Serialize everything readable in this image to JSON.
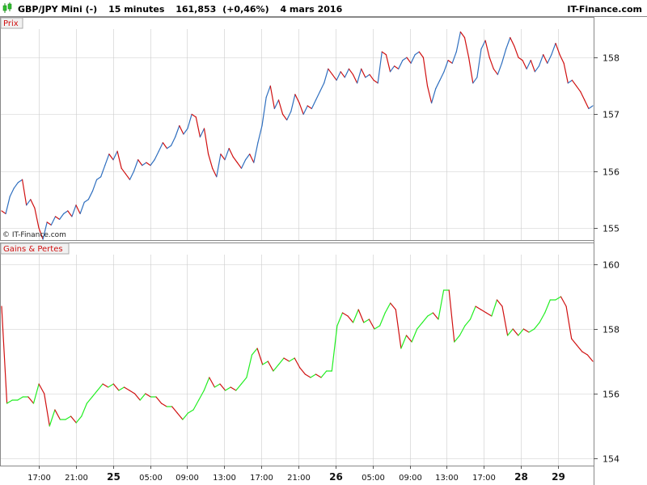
{
  "header": {
    "symbol": "GBP/JPY Mini (-)",
    "interval": "15 minutes",
    "price": "161,853",
    "change": "(+0,46%)",
    "date": "4 mars 2016",
    "brand": "IT-Finance.com"
  },
  "copyright": "© IT-Finance.com",
  "colors": {
    "up": "#2f6fbf",
    "down": "#d01010",
    "gain": "#22ee22",
    "loss": "#d01010",
    "grid": "#cccccc",
    "frame": "#888888"
  },
  "x_ticks": [
    "17:00",
    "21:00",
    "25",
    "05:00",
    "09:00",
    "13:00",
    "17:00",
    "21:00",
    "26",
    "05:00",
    "09:00",
    "13:00",
    "17:00",
    "28",
    "29"
  ],
  "x_ticks_bold": [
    "25",
    "26",
    "28",
    "29"
  ],
  "chart_data": [
    {
      "type": "line",
      "title": "Prix",
      "ylim": [
        154.8,
        158.5
      ],
      "yticks": [
        155,
        156,
        157,
        158
      ],
      "series": [
        {
          "values": [
            155.3,
            155.25,
            155.55,
            155.7,
            155.8,
            155.85,
            155.4,
            155.5,
            155.35,
            155.0,
            154.8,
            155.1,
            155.05,
            155.2,
            155.15,
            155.25,
            155.3,
            155.2,
            155.4,
            155.25,
            155.45,
            155.5,
            155.65,
            155.85,
            155.9,
            156.1,
            156.3,
            156.2,
            156.35,
            156.05,
            155.95,
            155.85,
            156.0,
            156.2,
            156.1,
            156.15,
            156.1,
            156.2,
            156.35,
            156.5,
            156.4,
            156.45,
            156.6,
            156.8,
            156.65,
            156.75,
            157.0,
            156.95,
            156.6,
            156.75,
            156.3,
            156.05,
            155.9,
            156.3,
            156.2,
            156.4,
            156.25,
            156.15,
            156.05,
            156.2,
            156.3,
            156.15,
            156.5,
            156.8,
            157.3,
            157.5,
            157.1,
            157.25,
            157.0,
            156.9,
            157.05,
            157.35,
            157.2,
            157.0,
            157.15,
            157.1,
            157.25,
            157.4,
            157.55,
            157.8,
            157.7,
            157.6,
            157.75,
            157.65,
            157.8,
            157.7,
            157.55,
            157.8,
            157.65,
            157.7,
            157.6,
            157.55,
            158.1,
            158.05,
            157.75,
            157.85,
            157.8,
            157.95,
            158.0,
            157.9,
            158.05,
            158.1,
            158.0,
            157.5,
            157.2,
            157.45,
            157.6,
            157.75,
            157.95,
            157.9,
            158.1,
            158.45,
            158.35,
            158.0,
            157.55,
            157.65,
            158.15,
            158.3,
            158.0,
            157.8,
            157.7,
            157.9,
            158.15,
            158.35,
            158.2,
            158.0,
            157.95,
            157.8,
            157.95,
            157.75,
            157.85,
            158.05,
            157.9,
            158.05,
            158.25,
            158.05,
            157.9,
            157.55,
            157.6,
            157.5,
            157.4,
            157.25,
            157.1,
            157.15
          ]
        }
      ]
    },
    {
      "type": "line",
      "title": "Gains & Pertes",
      "ylim": [
        153.8,
        160.3
      ],
      "yticks": [
        154,
        156,
        158,
        160
      ],
      "series": [
        {
          "values": [
            158.7,
            155.7,
            155.8,
            155.8,
            155.9,
            155.9,
            155.7,
            156.3,
            156.0,
            155.0,
            155.5,
            155.2,
            155.2,
            155.3,
            155.1,
            155.3,
            155.7,
            155.9,
            156.1,
            156.3,
            156.2,
            156.3,
            156.1,
            156.2,
            156.1,
            156.0,
            155.8,
            156.0,
            155.9,
            155.9,
            155.7,
            155.6,
            155.6,
            155.4,
            155.2,
            155.4,
            155.5,
            155.8,
            156.1,
            156.5,
            156.2,
            156.3,
            156.1,
            156.2,
            156.1,
            156.3,
            156.5,
            157.2,
            157.4,
            156.9,
            157.0,
            156.7,
            156.9,
            157.1,
            157.0,
            157.1,
            156.8,
            156.6,
            156.5,
            156.6,
            156.5,
            156.7,
            156.7,
            158.1,
            158.5,
            158.4,
            158.2,
            158.6,
            158.2,
            158.3,
            158.0,
            158.1,
            158.5,
            158.8,
            158.6,
            157.4,
            157.8,
            157.6,
            158.0,
            158.2,
            158.4,
            158.5,
            158.3,
            159.2,
            159.2,
            157.6,
            157.8,
            158.1,
            158.3,
            158.7,
            158.6,
            158.5,
            158.4,
            158.9,
            158.7,
            157.8,
            158.0,
            157.8,
            158.0,
            157.9,
            158.0,
            158.2,
            158.5,
            158.9,
            158.9,
            159.0,
            158.7,
            157.7,
            157.5,
            157.3,
            157.2,
            157.0
          ]
        }
      ]
    }
  ]
}
